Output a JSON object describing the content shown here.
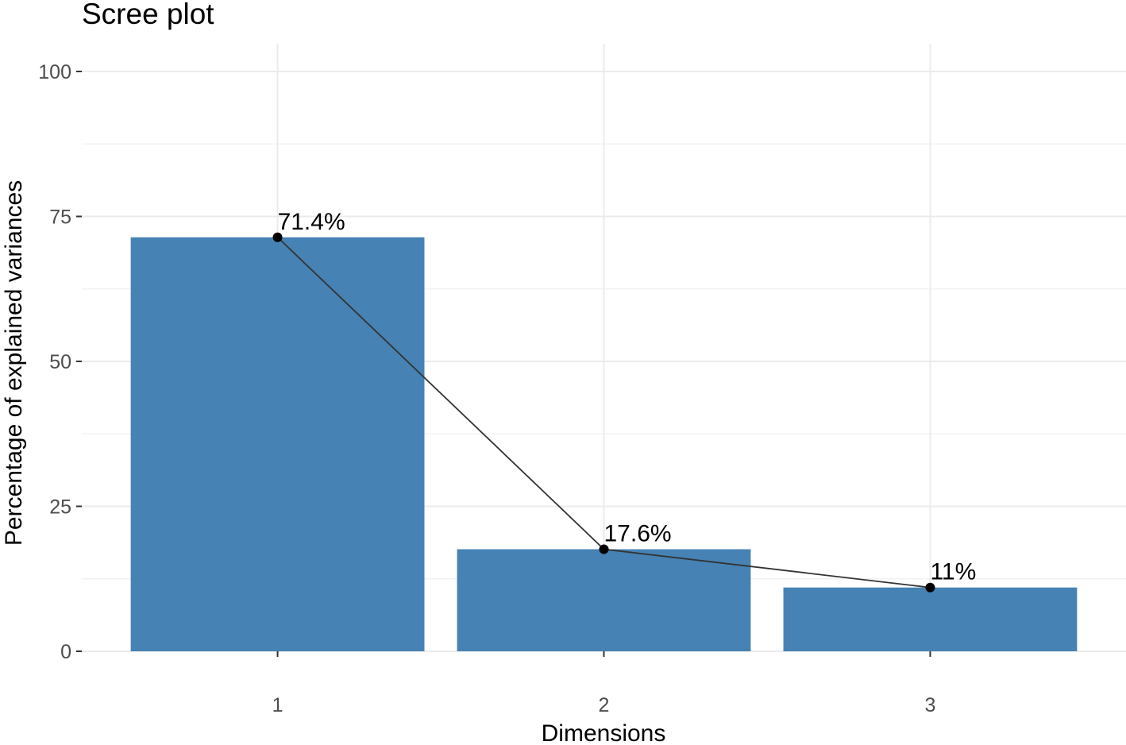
{
  "chart_data": {
    "type": "bar",
    "title": "Scree plot",
    "xlabel": "Dimensions",
    "ylabel": "Percentage of explained variances",
    "categories": [
      "1",
      "2",
      "3"
    ],
    "values": [
      71.4,
      17.6,
      11.0
    ],
    "data_labels": [
      "71.4%",
      "17.6%",
      "11%"
    ],
    "overlay": "line-with-points",
    "ylim": [
      0,
      100
    ],
    "yticks": [
      0,
      25,
      50,
      75,
      100
    ],
    "ytick_labels": [
      "0",
      "25",
      "50",
      "75",
      "100"
    ],
    "grid": true,
    "legend": "none",
    "bar_color": "#4682B4",
    "line_color": "#333333",
    "point_color": "#000000"
  }
}
